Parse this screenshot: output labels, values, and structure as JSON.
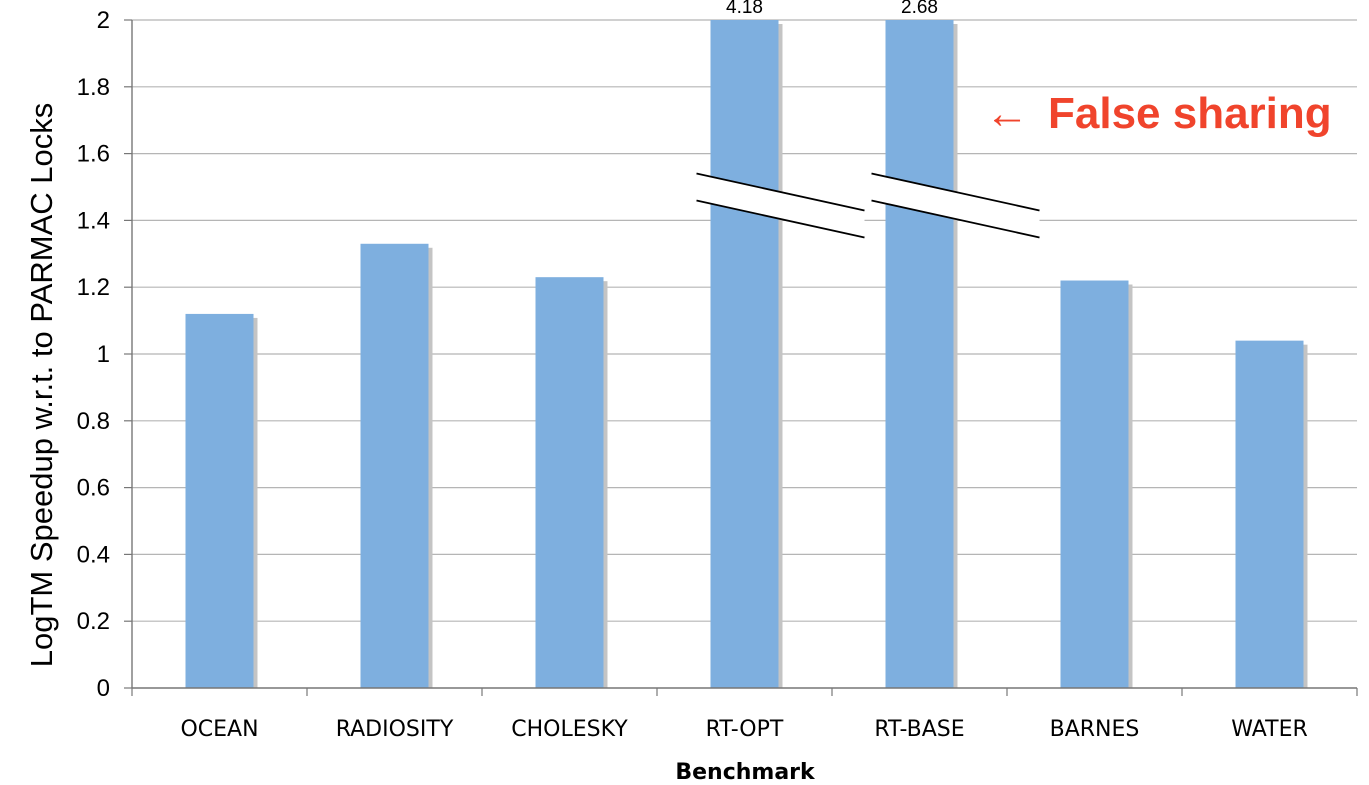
{
  "chart_data": {
    "type": "bar",
    "title": "",
    "xlabel": "Benchmark",
    "ylabel": "LogTM Speedup w.r.t. to PARMAC Locks",
    "ylim": [
      0,
      2
    ],
    "yticks": [
      "0",
      "0.2",
      "0.4",
      "0.6",
      "0.8",
      "1",
      "1.2",
      "1.4",
      "1.6",
      "1.8",
      "2"
    ],
    "categories": [
      "OCEAN",
      "RADIOSITY",
      "CHOLESKY",
      "RT-OPT",
      "RT-BASE",
      "BARNES",
      "WATER"
    ],
    "values": [
      1.12,
      1.33,
      1.23,
      4.18,
      2.68,
      1.22,
      1.04
    ],
    "data_labels": [
      "",
      "",
      "",
      "4.18",
      "2.68",
      "",
      ""
    ],
    "broken_axis_bars": [
      "RT-OPT",
      "RT-BASE"
    ],
    "grid": true,
    "annotation": {
      "text": "False sharing",
      "arrow": "←",
      "points_to": "RT-BASE"
    },
    "colors": {
      "bar": "#7eafdf",
      "bar_shadow": "#c4c4c4",
      "grid": "#b5b5b5",
      "annotation": "#f0442c"
    }
  }
}
